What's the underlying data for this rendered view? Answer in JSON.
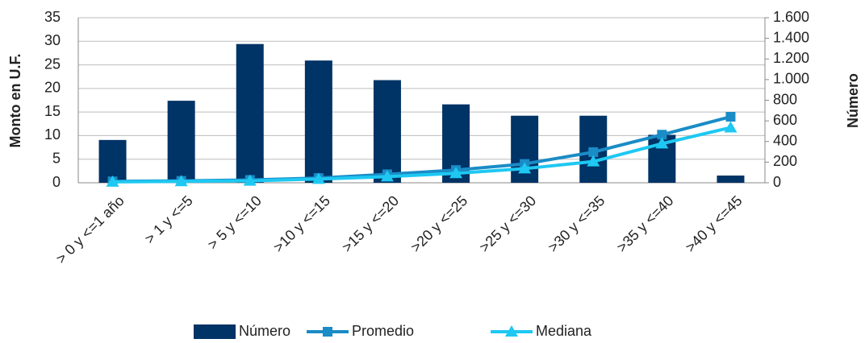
{
  "chart_data": {
    "type": "bar-line",
    "ylabel": "Monto en U.F.",
    "y2label": "Número",
    "categories": [
      "> 0 y <=1 año",
      "> 1 y <=5",
      "> 5 y <=10",
      ">10 y <=15",
      ">15 y <=20",
      ">20 y <=25",
      ">25 y <=30",
      ">30 y <=35",
      ">35 y <=40",
      ">40 y <=45"
    ],
    "series": [
      {
        "name": "Número",
        "type": "bar",
        "axis": "y2",
        "color": "#003366",
        "values": [
          415,
          795,
          1345,
          1185,
          995,
          760,
          650,
          650,
          465,
          70
        ]
      },
      {
        "name": "Promedio",
        "type": "line",
        "marker": "square",
        "color": "#1a8cc6",
        "values": [
          0.3,
          0.4,
          0.6,
          1.0,
          1.8,
          2.7,
          4.0,
          6.5,
          10.2,
          14.0
        ]
      },
      {
        "name": "Mediana",
        "type": "line",
        "marker": "triangle",
        "color": "#1ec8f2",
        "values": [
          0.2,
          0.3,
          0.4,
          0.8,
          1.3,
          2.0,
          3.0,
          4.5,
          8.3,
          11.7
        ]
      }
    ],
    "ylim": [
      0,
      35
    ],
    "yticks": [
      0,
      5,
      10,
      15,
      20,
      25,
      30,
      35
    ],
    "y2lim": [
      0,
      1600
    ],
    "y2ticks": [
      0,
      200,
      400,
      600,
      800,
      {
        "value": 1000,
        "label": "1.000"
      },
      {
        "value": 1200,
        "label": "1.200"
      },
      {
        "value": 1400,
        "label": "1.400"
      },
      {
        "value": 1600,
        "label": "1.600"
      }
    ],
    "grid": true,
    "legend": "bottom"
  }
}
